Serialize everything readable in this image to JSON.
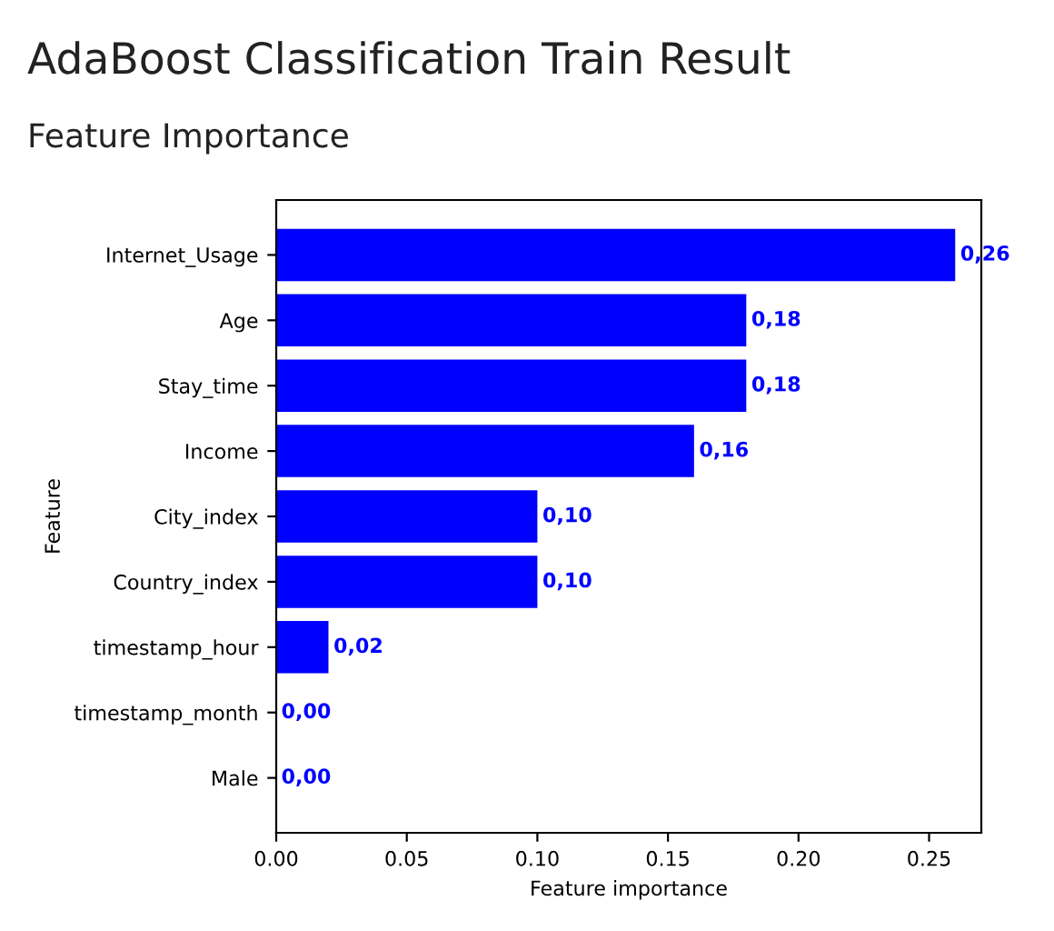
{
  "chart_data": {
    "type": "bar",
    "orientation": "horizontal",
    "title": "AdaBoost Classification Train Result",
    "subtitle": "Feature Importance",
    "xlabel": "Feature importance",
    "ylabel": "Feature",
    "categories": [
      "Internet_Usage",
      "Age",
      "Stay_time",
      "Income",
      "City_index",
      "Country_index",
      "timestamp_hour",
      "timestamp_month",
      "Male"
    ],
    "values": [
      0.26,
      0.18,
      0.18,
      0.16,
      0.1,
      0.1,
      0.02,
      0.0,
      0.0
    ],
    "value_labels": [
      "0,26",
      "0,18",
      "0,18",
      "0,16",
      "0,10",
      "0,10",
      "0,02",
      "0,00",
      "0,00"
    ],
    "color": "#0000ff",
    "xlim": [
      0,
      0.27
    ],
    "xticks": [
      {
        "value": 0,
        "label": "0.00"
      },
      {
        "value": 0.05,
        "label": "0.05"
      },
      {
        "value": 0.1,
        "label": "0.10"
      },
      {
        "value": 0.15,
        "label": "0.15"
      },
      {
        "value": 0.2,
        "label": "0.20"
      },
      {
        "value": 0.25,
        "label": "0.25"
      }
    ],
    "grid": false
  }
}
